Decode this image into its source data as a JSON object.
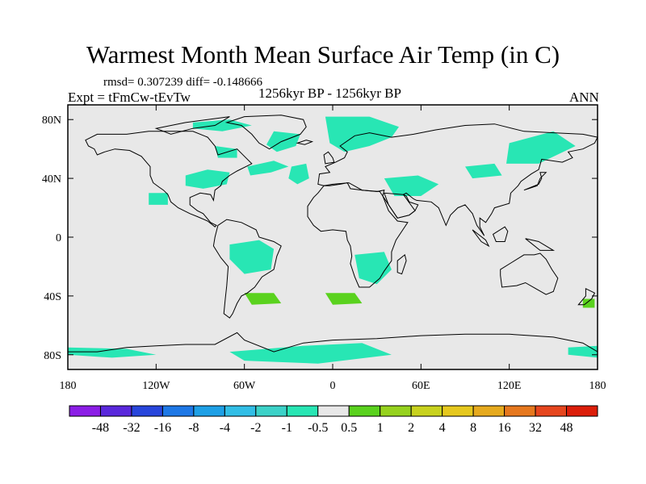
{
  "title": "Warmest Month Mean Surface Air Temp (in C)",
  "stats": "rmsd= 0.307239 diff= -0.148666",
  "experiment": "Expt = tFmCw-tEvTw",
  "period": "1256kyr BP - 1256kyr BP",
  "season": "ANN",
  "map": {
    "lon_range": [
      -180,
      180
    ],
    "lat_range": [
      -90,
      90
    ],
    "background_color": "#e8e8e8",
    "lat_ticks": [
      {
        "value": 80,
        "label": "80N"
      },
      {
        "value": 40,
        "label": "40N"
      },
      {
        "value": 0,
        "label": "0"
      },
      {
        "value": -40,
        "label": "40S"
      },
      {
        "value": -80,
        "label": "80S"
      }
    ],
    "lon_ticks": [
      {
        "value": -180,
        "label": "180"
      },
      {
        "value": -120,
        "label": "120W"
      },
      {
        "value": -60,
        "label": "60W"
      },
      {
        "value": 0,
        "label": "0"
      },
      {
        "value": 60,
        "label": "60E"
      },
      {
        "value": 120,
        "label": "120E"
      },
      {
        "value": 180,
        "label": "180"
      }
    ]
  },
  "legend": {
    "colors": [
      "#8c1ee6",
      "#5a28dc",
      "#2846dc",
      "#1e78e6",
      "#1ea0e6",
      "#32bee6",
      "#3cd2c8",
      "#28e6b4",
      "#e8e8e8",
      "#5ad21e",
      "#96d21e",
      "#c8d21e",
      "#e6c81e",
      "#e6aa1e",
      "#e6781e",
      "#e6461e",
      "#dc1e0a"
    ],
    "labels": [
      "-48",
      "-32",
      "-16",
      "-8",
      "-4",
      "-2",
      "-1",
      "-0.5",
      "0.5",
      "1",
      "2",
      "4",
      "8",
      "16",
      "32",
      "48"
    ]
  },
  "anomaly_regions": [
    {
      "name": "arctic-canada",
      "level": "-1",
      "color": "#28e6b4",
      "points": [
        [
          -95,
          78
        ],
        [
          -70,
          80
        ],
        [
          -55,
          76
        ],
        [
          -75,
          72
        ],
        [
          -95,
          74
        ]
      ]
    },
    {
      "name": "greenland-north-atlantic",
      "level": "-1",
      "color": "#28e6b4",
      "points": [
        [
          -40,
          72
        ],
        [
          -22,
          70
        ],
        [
          -25,
          62
        ],
        [
          -38,
          58
        ],
        [
          -45,
          63
        ]
      ]
    },
    {
      "name": "north-atlantic-west",
      "level": "-1",
      "color": "#28e6b4",
      "points": [
        [
          -58,
          48
        ],
        [
          -40,
          52
        ],
        [
          -30,
          48
        ],
        [
          -42,
          44
        ],
        [
          -56,
          42
        ]
      ]
    },
    {
      "name": "mid-atlantic",
      "level": "-1",
      "color": "#28e6b4",
      "points": [
        [
          -28,
          48
        ],
        [
          -18,
          50
        ],
        [
          -16,
          40
        ],
        [
          -24,
          36
        ],
        [
          -30,
          40
        ]
      ]
    },
    {
      "name": "scandinavia-barents",
      "level": "-1",
      "color": "#28e6b4",
      "points": [
        [
          -5,
          82
        ],
        [
          25,
          82
        ],
        [
          45,
          75
        ],
        [
          40,
          68
        ],
        [
          25,
          62
        ],
        [
          8,
          58
        ],
        [
          -2,
          64
        ]
      ]
    },
    {
      "name": "north-america-east",
      "level": "-1",
      "color": "#28e6b4",
      "points": [
        [
          -100,
          42
        ],
        [
          -85,
          46
        ],
        [
          -70,
          44
        ],
        [
          -72,
          36
        ],
        [
          -88,
          33
        ],
        [
          -100,
          35
        ]
      ]
    },
    {
      "name": "north-america-west",
      "level": "-1",
      "color": "#28e6b4",
      "points": [
        [
          -125,
          30
        ],
        [
          -112,
          30
        ],
        [
          -112,
          22
        ],
        [
          -125,
          22
        ]
      ]
    },
    {
      "name": "labrador",
      "level": "-1",
      "color": "#28e6b4",
      "points": [
        [
          -80,
          62
        ],
        [
          -65,
          60
        ],
        [
          -65,
          54
        ],
        [
          -78,
          54
        ]
      ]
    },
    {
      "name": "middle-east-central-asia",
      "level": "-1",
      "color": "#28e6b4",
      "points": [
        [
          35,
          40
        ],
        [
          58,
          42
        ],
        [
          72,
          36
        ],
        [
          60,
          28
        ],
        [
          42,
          28
        ]
      ]
    },
    {
      "name": "siberia-east",
      "level": "-1",
      "color": "#28e6b4",
      "points": [
        [
          120,
          64
        ],
        [
          150,
          72
        ],
        [
          165,
          62
        ],
        [
          140,
          50
        ],
        [
          118,
          50
        ]
      ]
    },
    {
      "name": "mongolia",
      "level": "-1",
      "color": "#28e6b4",
      "points": [
        [
          90,
          48
        ],
        [
          110,
          50
        ],
        [
          115,
          42
        ],
        [
          95,
          40
        ]
      ]
    },
    {
      "name": "amazon-brazil",
      "level": "-1",
      "color": "#28e6b4",
      "points": [
        [
          -70,
          -5
        ],
        [
          -50,
          -2
        ],
        [
          -40,
          -8
        ],
        [
          -42,
          -22
        ],
        [
          -60,
          -25
        ],
        [
          -70,
          -15
        ]
      ]
    },
    {
      "name": "southern-africa",
      "level": "-1",
      "color": "#28e6b4",
      "points": [
        [
          15,
          -12
        ],
        [
          35,
          -10
        ],
        [
          40,
          -22
        ],
        [
          30,
          -32
        ],
        [
          18,
          -28
        ]
      ]
    },
    {
      "name": "south-pacific-east",
      "level": "-1",
      "color": "#28e6b4",
      "points": [
        [
          -180,
          -75
        ],
        [
          -140,
          -76
        ],
        [
          -120,
          -80
        ],
        [
          -150,
          -82
        ],
        [
          -180,
          -80
        ]
      ]
    },
    {
      "name": "weddell-sea",
      "level": "-1",
      "color": "#28e6b4",
      "points": [
        [
          -70,
          -78
        ],
        [
          -20,
          -74
        ],
        [
          20,
          -72
        ],
        [
          40,
          -80
        ],
        [
          -10,
          -86
        ],
        [
          -60,
          -84
        ]
      ]
    },
    {
      "name": "ross-sea-east",
      "level": "-1",
      "color": "#28e6b4",
      "points": [
        [
          160,
          -75
        ],
        [
          180,
          -74
        ],
        [
          180,
          -82
        ],
        [
          160,
          -80
        ]
      ]
    },
    {
      "name": "south-atlantic",
      "level": "1",
      "color": "#5ad21e",
      "points": [
        [
          -60,
          -38
        ],
        [
          -40,
          -38
        ],
        [
          -35,
          -45
        ],
        [
          -55,
          -46
        ]
      ]
    },
    {
      "name": "south-indian",
      "level": "1",
      "color": "#5ad21e",
      "points": [
        [
          -5,
          -38
        ],
        [
          15,
          -38
        ],
        [
          20,
          -45
        ],
        [
          0,
          -46
        ]
      ]
    },
    {
      "name": "tasman",
      "level": "1",
      "color": "#5ad21e",
      "points": [
        [
          170,
          -42
        ],
        [
          178,
          -42
        ],
        [
          178,
          -48
        ],
        [
          170,
          -48
        ]
      ]
    }
  ]
}
